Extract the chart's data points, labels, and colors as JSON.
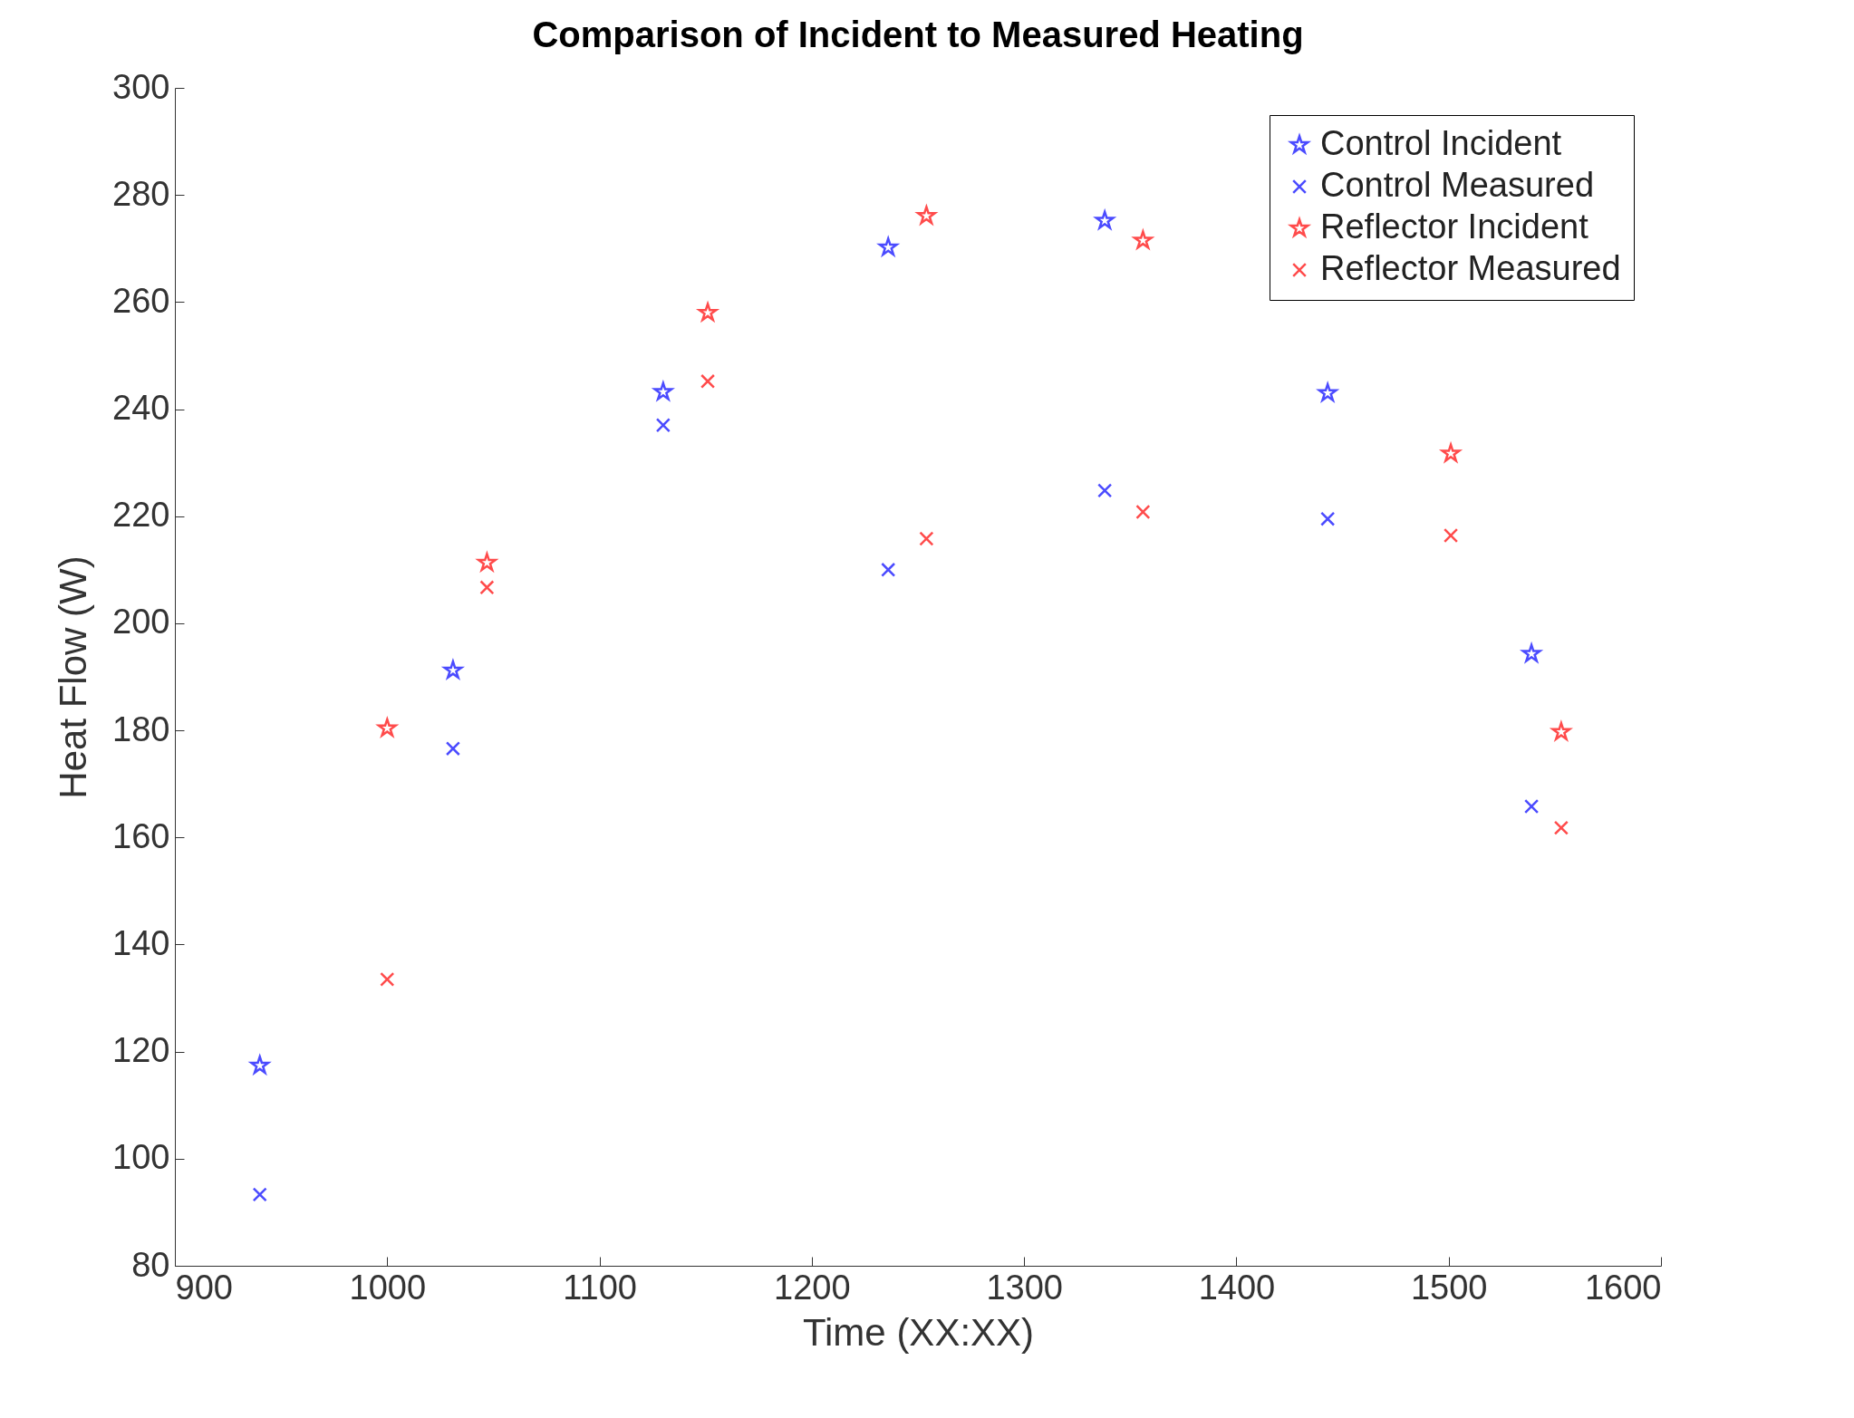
{
  "chart_data": {
    "type": "scatter",
    "title": "Comparison of Incident to Measured Heating",
    "xlabel": "Time (XX:XX)",
    "ylabel": "Heat Flow (W)",
    "xlim": [
      900,
      1600
    ],
    "xticks": [
      900,
      1000,
      1100,
      1200,
      1300,
      1400,
      1500,
      1600
    ],
    "ylim": [
      80,
      300
    ],
    "yticks": [
      80,
      100,
      120,
      140,
      160,
      180,
      200,
      220,
      240,
      260,
      280,
      300
    ],
    "grid": false,
    "legend": "top right",
    "series": [
      {
        "name": "Control Incident",
        "color": "#0000ff",
        "marker": "star",
        "x": [
          940,
          1031,
          1130,
          1236,
          1338,
          1443,
          1539
        ],
        "values": [
          117.4,
          191.2,
          243.2,
          270.2,
          275.2,
          243,
          194.3
        ]
      },
      {
        "name": "Control Measured",
        "color": "#0000ff",
        "marker": "cross",
        "x": [
          940,
          1031,
          1130,
          1236,
          1338,
          1443,
          1539
        ],
        "values": [
          93.3,
          176.6,
          237,
          210,
          224.8,
          219.5,
          165.8
        ]
      },
      {
        "name": "Reflector Incident",
        "color": "#ff0000",
        "marker": "star",
        "x": [
          1000,
          1047,
          1151,
          1254,
          1356,
          1501,
          1553
        ],
        "values": [
          180.4,
          211.3,
          258,
          276.1,
          271.5,
          231.7,
          179.7
        ]
      },
      {
        "name": "Reflector Measured",
        "color": "#ff0000",
        "marker": "cross",
        "x": [
          1000,
          1047,
          1151,
          1254,
          1356,
          1501,
          1553
        ],
        "values": [
          133.5,
          206.7,
          245.2,
          215.8,
          220.8,
          216.4,
          161.8
        ]
      }
    ]
  }
}
